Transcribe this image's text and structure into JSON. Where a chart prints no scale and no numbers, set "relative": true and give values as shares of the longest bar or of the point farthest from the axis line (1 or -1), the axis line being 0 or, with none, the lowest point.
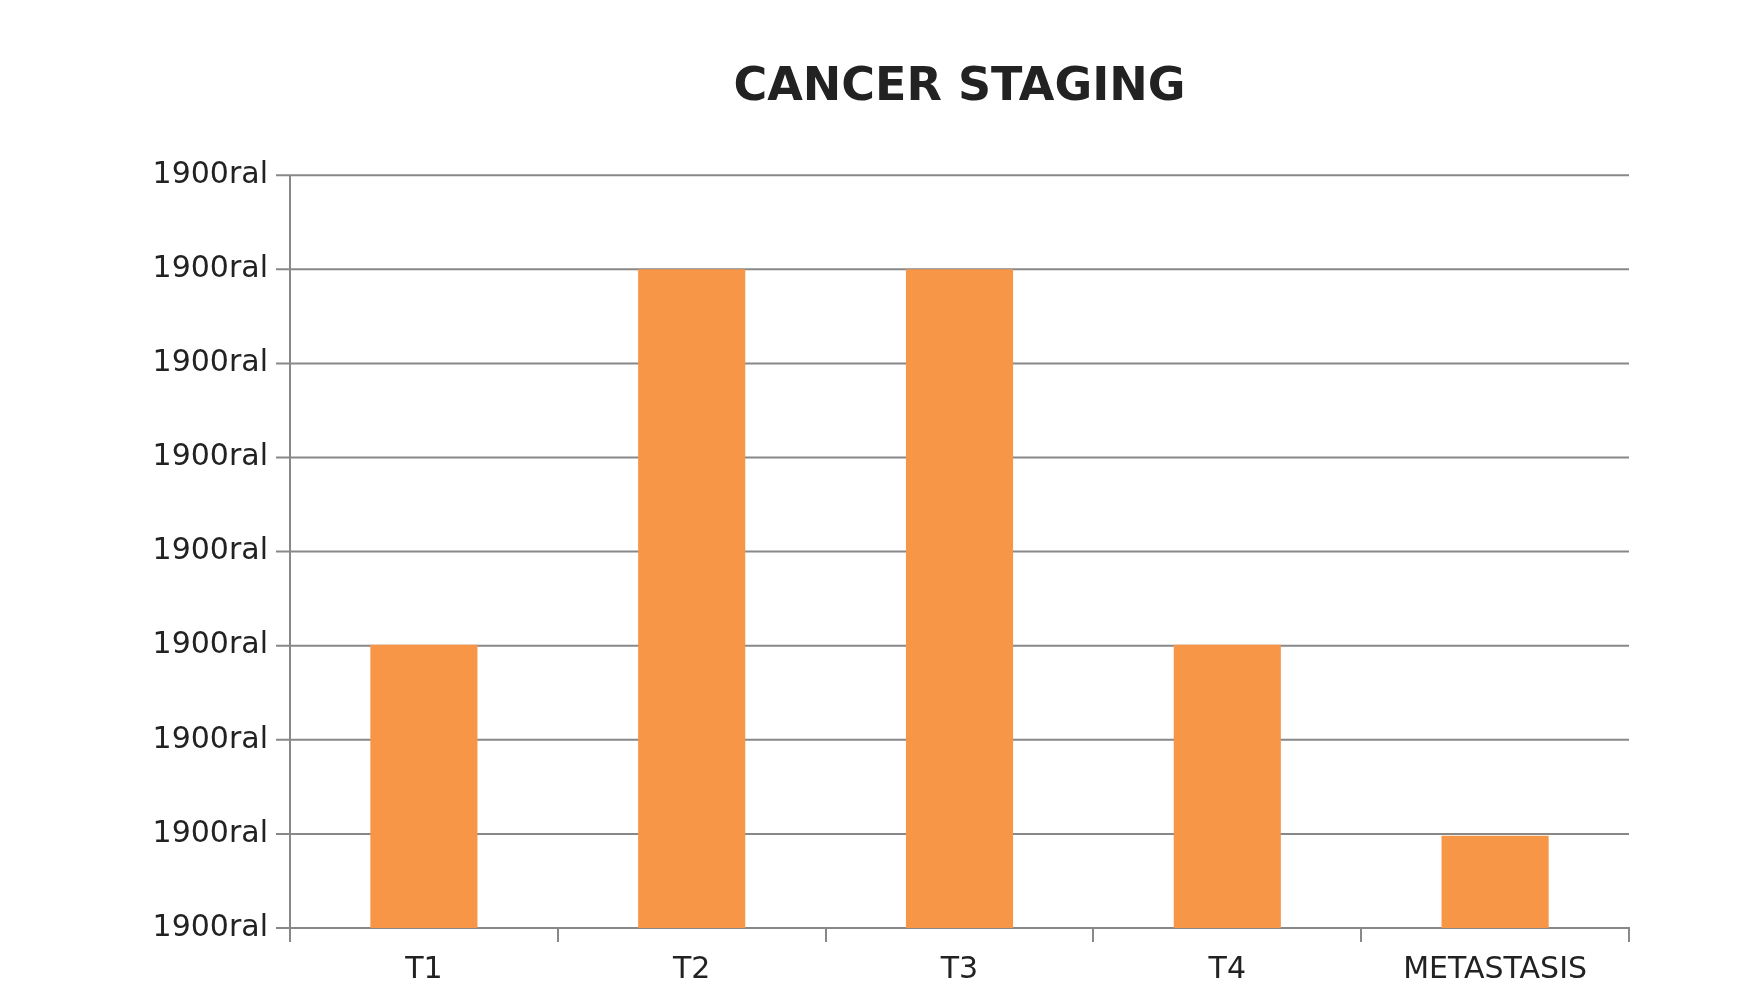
{
  "chart_data": {
    "type": "bar",
    "title": "CANCER STAGING",
    "categories": [
      "T1",
      "T2",
      "T3",
      "T4",
      "METASTASIS"
    ],
    "values": [
      0.43,
      1,
      1,
      0.43,
      0.14
    ],
    "color": "#f79646",
    "relative": true,
    "annotations": [
      "1900ral",
      "1900ral",
      "1900ral",
      "1900ral",
      "1900ral",
      "1900ral",
      "1900ral",
      "1900ral",
      "1900ral"
    ],
    "grid": "y",
    "legend": false
  }
}
